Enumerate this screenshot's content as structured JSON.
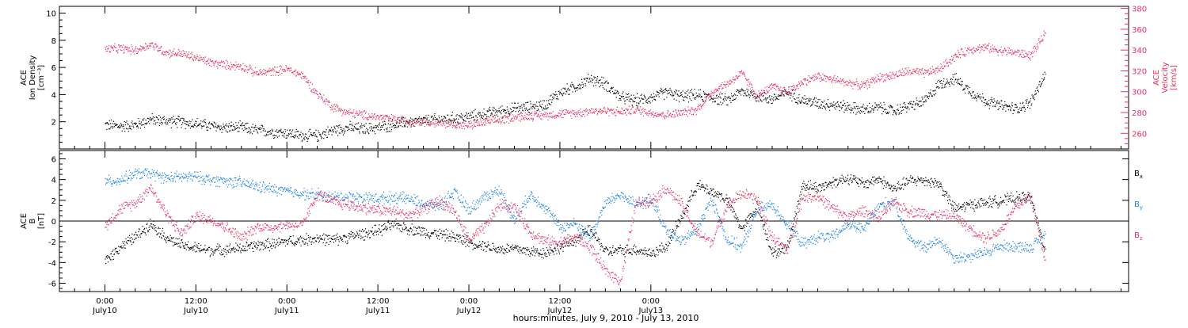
{
  "colors": {
    "axis": "#000000",
    "black_series": "#000000",
    "pink": "#e8305f",
    "blue": "#1f86e6"
  },
  "chart_data": [
    {
      "type": "scatter",
      "panel": "top",
      "ylabel_left": [
        "ACE",
        "Ion Density",
        "[cm⁻³]"
      ],
      "ylabel_right": [
        "ACE",
        "Velocity",
        "[km/s]"
      ],
      "ylim_left": [
        0,
        10.5
      ],
      "yticks_left": [
        2,
        4,
        6,
        8,
        10
      ],
      "ylim_right": [
        245,
        382
      ],
      "yticks_right": [
        260,
        280,
        300,
        320,
        340,
        360,
        380
      ],
      "series": [
        {
          "axis": "left",
          "color": "#000000",
          "x": [
            0,
            2,
            4,
            6,
            8,
            10,
            12,
            14,
            16,
            18,
            20,
            22,
            24,
            26,
            28,
            30,
            32,
            34,
            36,
            38,
            40,
            42,
            44,
            46,
            48,
            50,
            52,
            54,
            56,
            58,
            60,
            62,
            64,
            66,
            68,
            70,
            72,
            74,
            76,
            78,
            80,
            82,
            84,
            86,
            88,
            90,
            92,
            94,
            96,
            98,
            100,
            102,
            104,
            106,
            108,
            110,
            112,
            114,
            116,
            118,
            120,
            122,
            124
          ],
          "y": [
            1.8,
            1.7,
            1.8,
            2.2,
            2.1,
            2.0,
            1.9,
            1.7,
            1.6,
            1.6,
            1.4,
            1.3,
            1.2,
            1.0,
            1.0,
            1.4,
            1.6,
            1.5,
            1.6,
            1.8,
            2.0,
            2.1,
            2.2,
            2.3,
            2.4,
            2.6,
            2.8,
            3.0,
            3.1,
            3.3,
            4.2,
            4.6,
            5.2,
            4.8,
            3.8,
            3.6,
            3.8,
            4.2,
            3.9,
            4.0,
            3.8,
            3.6,
            4.3,
            3.9,
            3.7,
            4.2,
            3.6,
            3.4,
            3.3,
            3.1,
            2.9,
            3.1,
            2.8,
            3.2,
            3.5,
            4.8,
            5.2,
            4.3,
            3.6,
            3.2,
            3.0,
            3.4,
            5.6
          ]
        },
        {
          "axis": "right",
          "color": "#e8305f",
          "x": [
            0,
            2,
            4,
            6,
            8,
            10,
            12,
            14,
            16,
            18,
            20,
            22,
            24,
            26,
            28,
            30,
            32,
            34,
            36,
            38,
            40,
            42,
            44,
            46,
            48,
            50,
            52,
            54,
            56,
            58,
            60,
            62,
            64,
            66,
            68,
            70,
            72,
            74,
            76,
            78,
            80,
            82,
            84,
            86,
            88,
            90,
            92,
            94,
            96,
            98,
            100,
            102,
            104,
            106,
            108,
            110,
            112,
            114,
            116,
            118,
            120,
            122,
            124
          ],
          "y": [
            341,
            342,
            340,
            346,
            338,
            337,
            333,
            328,
            326,
            325,
            318,
            320,
            322,
            316,
            298,
            286,
            280,
            278,
            276,
            274,
            272,
            272,
            270,
            269,
            268,
            271,
            273,
            276,
            277,
            278,
            279,
            280,
            282,
            282,
            281,
            283,
            280,
            278,
            280,
            283,
            300,
            308,
            318,
            296,
            305,
            300,
            310,
            315,
            312,
            309,
            306,
            314,
            316,
            320,
            318,
            322,
            334,
            341,
            343,
            340,
            338,
            335,
            356
          ]
        }
      ]
    },
    {
      "type": "scatter",
      "panel": "bottom",
      "ylabel": [
        "ACE",
        "B",
        "[nT]"
      ],
      "ylim": [
        -6.8,
        6.8
      ],
      "yticks": [
        -6,
        -4,
        -2,
        0,
        2,
        4,
        6
      ],
      "series": [
        {
          "name": "Bₓ",
          "color": "#000000",
          "x": [
            0,
            2,
            4,
            6,
            8,
            10,
            12,
            14,
            16,
            18,
            20,
            22,
            24,
            26,
            28,
            30,
            32,
            34,
            36,
            38,
            40,
            42,
            44,
            46,
            48,
            50,
            52,
            54,
            56,
            58,
            60,
            62,
            64,
            66,
            68,
            70,
            72,
            74,
            76,
            78,
            80,
            82,
            84,
            86,
            88,
            90,
            92,
            94,
            96,
            98,
            100,
            102,
            104,
            106,
            108,
            110,
            112,
            114,
            116,
            118,
            120,
            122,
            124
          ],
          "y": [
            -3.8,
            -2.4,
            -1.5,
            -0.2,
            -1.5,
            -2.3,
            -2.6,
            -2.8,
            -2.7,
            -2.6,
            -2.3,
            -2.2,
            -1.9,
            -1.8,
            -1.6,
            -1.8,
            -1.5,
            -1.2,
            -0.9,
            -0.3,
            -0.7,
            -1.0,
            -1.2,
            -1.5,
            -2.0,
            -2.3,
            -2.7,
            -2.6,
            -2.9,
            -3.0,
            -2.5,
            -1.8,
            -0.8,
            -2.9,
            -2.8,
            -2.7,
            -3.1,
            -2.4,
            0.4,
            3.5,
            2.9,
            2.1,
            -0.8,
            1.5,
            -3.1,
            -2.4,
            3.6,
            3.2,
            3.8,
            4.2,
            3.6,
            4.1,
            3.1,
            3.9,
            4.0,
            3.6,
            1.2,
            1.6,
            1.8,
            2.0,
            2.2,
            2.4,
            -3.0
          ]
        },
        {
          "name": "B_y",
          "color": "#1f86e6",
          "x": [
            0,
            2,
            4,
            6,
            8,
            10,
            12,
            14,
            16,
            18,
            20,
            22,
            24,
            26,
            28,
            30,
            32,
            34,
            36,
            38,
            40,
            42,
            44,
            46,
            48,
            50,
            52,
            54,
            56,
            58,
            60,
            62,
            64,
            66,
            68,
            70,
            72,
            74,
            76,
            78,
            80,
            82,
            84,
            86,
            88,
            90,
            92,
            94,
            96,
            98,
            100,
            102,
            104,
            106,
            108,
            110,
            112,
            114,
            116,
            118,
            120,
            122,
            124
          ],
          "y": [
            3.8,
            4.0,
            4.6,
            4.6,
            4.2,
            4.3,
            4.3,
            4.0,
            3.9,
            3.7,
            3.4,
            3.1,
            2.9,
            2.7,
            2.5,
            2.3,
            2.4,
            2.3,
            2.2,
            2.3,
            2.2,
            1.7,
            1.5,
            2.8,
            1.1,
            2.4,
            3.0,
            0.1,
            2.6,
            1.4,
            -0.6,
            -0.2,
            -1.5,
            1.8,
            2.6,
            1.5,
            2.2,
            -0.8,
            -2.0,
            -0.8,
            2.2,
            -1.8,
            -2.5,
            1.2,
            1.6,
            -0.4,
            -2.2,
            -1.5,
            -1.5,
            -0.2,
            -0.8,
            1.5,
            2.0,
            -1.6,
            -2.6,
            -1.8,
            -3.5,
            -3.4,
            -3.0,
            -2.4,
            -2.4,
            -2.5,
            -1.3
          ]
        },
        {
          "name": "B_z",
          "color": "#e8305f",
          "x": [
            0,
            2,
            4,
            6,
            8,
            10,
            12,
            14,
            16,
            18,
            20,
            22,
            24,
            26,
            28,
            30,
            32,
            34,
            36,
            38,
            40,
            42,
            44,
            46,
            48,
            50,
            52,
            54,
            56,
            58,
            60,
            62,
            64,
            66,
            68,
            70,
            72,
            74,
            76,
            78,
            80,
            82,
            84,
            86,
            88,
            90,
            92,
            94,
            96,
            98,
            100,
            102,
            104,
            106,
            108,
            110,
            112,
            114,
            116,
            118,
            120,
            122,
            124
          ],
          "y": [
            -0.4,
            1.2,
            1.8,
            3.3,
            0.8,
            -1.2,
            0.5,
            0.2,
            -0.6,
            -1.6,
            -0.5,
            -0.6,
            -0.3,
            -0.4,
            2.7,
            1.9,
            1.6,
            1.3,
            1.1,
            1.0,
            0.6,
            1.2,
            2.0,
            1.0,
            -1.8,
            -0.6,
            1.6,
            1.4,
            -1.0,
            -1.9,
            -2.0,
            -1.5,
            -2.5,
            -4.8,
            -5.7,
            1.8,
            2.0,
            3.2,
            1.7,
            -1.1,
            -2.0,
            1.5,
            2.7,
            2.1,
            -1.6,
            -2.8,
            2.4,
            2.4,
            1.2,
            0.4,
            1.1,
            0.3,
            1.8,
            1.0,
            0.8,
            0.6,
            0.5,
            -0.6,
            -1.6,
            -0.9,
            1.3,
            2.5,
            -3.8
          ]
        }
      ],
      "legend": [
        "Bₓ",
        "B_y",
        "B_z"
      ],
      "zero_line": true
    }
  ],
  "xaxis": {
    "xlim_hours": [
      -6,
      135
    ],
    "ticks": [
      {
        "h": 0,
        "time": "0:00",
        "day": "July10"
      },
      {
        "h": 12,
        "time": "12:00",
        "day": "July10"
      },
      {
        "h": 24,
        "time": "0:00",
        "day": "July11"
      },
      {
        "h": 36,
        "time": "12:00",
        "day": "July11"
      },
      {
        "h": 48,
        "time": "0:00",
        "day": "July12"
      },
      {
        "h": 60,
        "time": "12:00",
        "day": "July12"
      },
      {
        "h": 72,
        "time": "0:00",
        "day": "July13"
      }
    ],
    "label": "hours:minutes, July  9, 2010 - July 13, 2010"
  }
}
